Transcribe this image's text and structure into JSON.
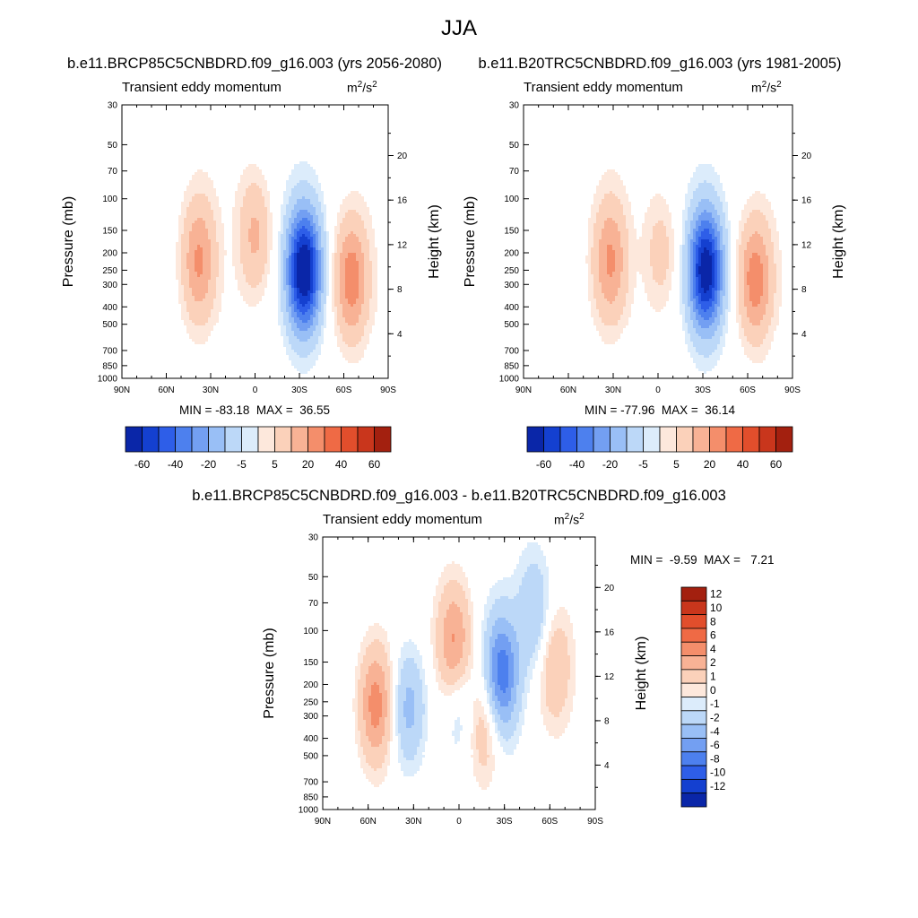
{
  "title": "JJA",
  "palette": {
    "negative": [
      "#ffffff",
      "#dcecfb",
      "#bcd8f8",
      "#99bff6",
      "#739ff2",
      "#4d80ee",
      "#2e5ee8",
      "#1440d0",
      "#0a26a8",
      "#031470"
    ],
    "positive": [
      "#ffffff",
      "#fde8dc",
      "#fbd1ba",
      "#f8b295",
      "#f48e6b",
      "#ef6a45",
      "#e24e2c",
      "#c9361c",
      "#a3200f",
      "#7d0a06"
    ]
  },
  "chart_data": [
    {
      "type": "heatmap",
      "title": "b.e11.BRCP85C5CNBDRD.f09_g16.003 (yrs 2056-2080)",
      "subtitle": "Transient eddy momentum",
      "units": "m",
      "units_exp1": "2",
      "units_mid": "/s",
      "units_exp2": "2",
      "xlabel": "",
      "ylabel": "Pressure (mb)",
      "y2label": "Height (km)",
      "xticks": [
        "90N",
        "60N",
        "30N",
        "0",
        "30S",
        "60S",
        "90S"
      ],
      "yticks": [
        "30",
        "50",
        "70",
        "100",
        "150",
        "200",
        "250",
        "300",
        "400",
        "500",
        "700",
        "850",
        "1000"
      ],
      "y2ticks": [
        "20",
        "16",
        "12",
        "8",
        "4"
      ],
      "min_label": "MIN = -83.18",
      "max_label": "MAX =  36.55",
      "value_range": [
        -83.18,
        36.55
      ],
      "contour_levels": [
        -70,
        -60,
        -50,
        -40,
        -30,
        -20,
        -10,
        -5,
        0,
        5,
        10,
        20,
        30,
        40,
        50,
        60,
        70
      ],
      "colorbar_labels": [
        "-60",
        "-40",
        "-20",
        "-5",
        "5",
        "20",
        "40",
        "60"
      ],
      "field_features": [
        {
          "lat": 38,
          "pressure": 220,
          "value": 30
        },
        {
          "lat": 0,
          "pressure": 160,
          "value": 22
        },
        {
          "lat": -33,
          "pressure": 250,
          "value": -83
        },
        {
          "lat": -65,
          "pressure": 280,
          "value": 36
        }
      ]
    },
    {
      "type": "heatmap",
      "title": "b.e11.B20TRC5CNBDRD.f09_g16.003 (yrs 1981-2005)",
      "subtitle": "Transient eddy momentum",
      "units": "m",
      "units_exp1": "2",
      "units_mid": "/s",
      "units_exp2": "2",
      "xlabel": "",
      "ylabel": "Pressure (mb)",
      "y2label": "Height (km)",
      "xticks": [
        "90N",
        "60N",
        "30N",
        "0",
        "30S",
        "60S",
        "90S"
      ],
      "yticks": [
        "30",
        "50",
        "70",
        "100",
        "150",
        "200",
        "250",
        "300",
        "400",
        "500",
        "700",
        "850",
        "1000"
      ],
      "y2ticks": [
        "20",
        "16",
        "12",
        "8",
        "4"
      ],
      "min_label": "MIN = -77.96",
      "max_label": "MAX =  36.14",
      "value_range": [
        -77.96,
        36.14
      ],
      "contour_levels": [
        -70,
        -60,
        -50,
        -40,
        -30,
        -20,
        -10,
        -5,
        0,
        5,
        10,
        20,
        30,
        40,
        50,
        60,
        70
      ],
      "colorbar_labels": [
        "-60",
        "-40",
        "-20",
        "-5",
        "5",
        "20",
        "40",
        "60"
      ],
      "field_features": [
        {
          "lat": 32,
          "pressure": 220,
          "value": 30
        },
        {
          "lat": -2,
          "pressure": 200,
          "value": 14
        },
        {
          "lat": -32,
          "pressure": 250,
          "value": -78
        },
        {
          "lat": -65,
          "pressure": 280,
          "value": 36
        }
      ]
    },
    {
      "type": "heatmap",
      "title": "b.e11.BRCP85C5CNBDRD.f09_g16.003 - b.e11.B20TRC5CNBDRD.f09_g16.003",
      "subtitle": "Transient eddy momentum",
      "units": "m",
      "units_exp1": "2",
      "units_mid": "/s",
      "units_exp2": "2",
      "xlabel": "",
      "ylabel": "Pressure (mb)",
      "y2label": "Height (km)",
      "xticks": [
        "90N",
        "60N",
        "30N",
        "0",
        "30S",
        "60S",
        "90S"
      ],
      "yticks": [
        "30",
        "50",
        "70",
        "100",
        "150",
        "200",
        "250",
        "300",
        "400",
        "500",
        "700",
        "850",
        "1000"
      ],
      "y2ticks": [
        "20",
        "16",
        "12",
        "8",
        "4"
      ],
      "min_label": "MIN =  -9.59",
      "max_label": "MAX =   7.21",
      "value_range": [
        -9.59,
        7.21
      ],
      "contour_levels": [
        -12,
        -10,
        -8,
        -6,
        -4,
        -2,
        -1,
        0,
        1,
        2,
        4,
        6,
        8,
        10,
        12
      ],
      "colorbar_labels": [
        "12",
        "10",
        "8",
        "6",
        "4",
        "2",
        "1",
        "0",
        "-1",
        "-2",
        "-4",
        "-6",
        "-8",
        "-10",
        "-12"
      ],
      "field_features": [
        {
          "lat": 55,
          "pressure": 260,
          "value": 7
        },
        {
          "lat": 33,
          "pressure": 270,
          "value": -5
        },
        {
          "lat": 3,
          "pressure": 120,
          "value": 7
        },
        {
          "lat": 0,
          "pressure": 240,
          "value": -3
        },
        {
          "lat": -17,
          "pressure": 340,
          "value": 4
        },
        {
          "lat": -28,
          "pressure": 175,
          "value": -9.5
        },
        {
          "lat": -50,
          "pressure": 80,
          "value": -4
        },
        {
          "lat": -63,
          "pressure": 160,
          "value": 4
        }
      ]
    }
  ]
}
